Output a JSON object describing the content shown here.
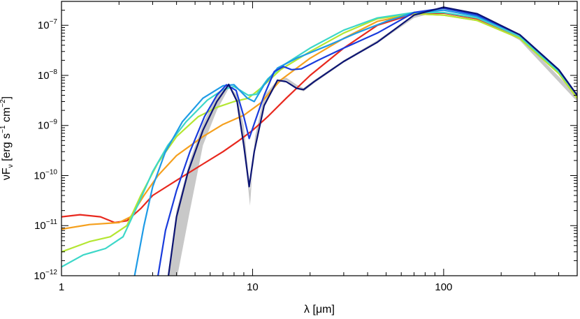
{
  "chart_data": {
    "type": "line",
    "title": "",
    "xlabel_parts": {
      "sym": "λ",
      "unit": "[μm]"
    },
    "ylabel_parts": {
      "nu": "ν",
      "F": "F",
      "sub": "ν",
      "unit": "[erg s",
      "exp1": "−1",
      "cm": " cm",
      "exp2": "−2",
      "close": "]"
    },
    "x_scale": "log",
    "y_scale": "log",
    "xlim": [
      1,
      500
    ],
    "ylim": [
      1e-12,
      3e-07
    ],
    "x_ticks": [
      1,
      10,
      100
    ],
    "x_tick_labels": [
      "1",
      "10",
      "100"
    ],
    "y_ticks": [
      1e-12,
      1e-11,
      1e-10,
      1e-09,
      1e-08,
      1e-07
    ],
    "y_tick_labels": [
      {
        "base": "10",
        "exp": "−12"
      },
      {
        "base": "10",
        "exp": "−11"
      },
      {
        "base": "10",
        "exp": "−10"
      },
      {
        "base": "10",
        "exp": "−9"
      },
      {
        "base": "10",
        "exp": "−8"
      },
      {
        "base": "10",
        "exp": "−7"
      }
    ],
    "grid": false,
    "legend": "none",
    "band": {
      "color": "#c8c8c8",
      "points": [
        [
          3.3,
          5e-13
        ],
        [
          3.6,
          1e-12
        ],
        [
          4.0,
          2e-11
        ],
        [
          4.7,
          2e-10
        ],
        [
          5.5,
          1.1e-09
        ],
        [
          6.5,
          4e-09
        ],
        [
          7.6,
          6.5e-09
        ],
        [
          8.3,
          3e-09
        ],
        [
          9.0,
          4e-10
        ],
        [
          9.7,
          2.5e-11
        ],
        [
          10.3,
          6e-10
        ],
        [
          11.5,
          4e-09
        ],
        [
          13.5,
          8e-09
        ],
        [
          15,
          9e-09
        ],
        [
          17,
          6.5e-09
        ],
        [
          18.5,
          5.6e-09
        ],
        [
          21,
          8e-09
        ],
        [
          30,
          2e-08
        ],
        [
          45,
          5e-08
        ],
        [
          70,
          1.6e-07
        ],
        [
          100,
          2.3e-07
        ],
        [
          150,
          1.7e-07
        ],
        [
          250,
          6e-08
        ],
        [
          500,
          4e-09
        ],
        [
          500,
          3e-09
        ],
        [
          250,
          5e-08
        ],
        [
          150,
          1.5e-07
        ],
        [
          100,
          2e-07
        ],
        [
          70,
          1.4e-07
        ],
        [
          45,
          4.4e-08
        ],
        [
          30,
          1.8e-08
        ],
        [
          21,
          7e-09
        ],
        [
          18.5,
          4.8e-09
        ],
        [
          17,
          5.4e-09
        ],
        [
          15,
          8e-09
        ],
        [
          13.5,
          7e-09
        ],
        [
          11.5,
          2.5e-09
        ],
        [
          10.3,
          3e-10
        ],
        [
          9.7,
          5e-11
        ],
        [
          9.0,
          1e-09
        ],
        [
          8.3,
          4e-09
        ],
        [
          7.6,
          6e-09
        ],
        [
          6.5,
          2e-09
        ],
        [
          5.5,
          4e-10
        ],
        [
          4.7,
          2e-11
        ],
        [
          4.0,
          8e-13
        ],
        [
          3.7,
          5e-13
        ]
      ]
    },
    "series": [
      {
        "color": "#e8281e",
        "points": [
          [
            1,
            1.5e-11
          ],
          [
            1.25,
            1.65e-11
          ],
          [
            1.6,
            1.5e-11
          ],
          [
            1.9,
            1.15e-11
          ],
          [
            2.2,
            1.25e-11
          ],
          [
            2.6,
            2.2e-11
          ],
          [
            3,
            4e-11
          ],
          [
            4,
            8e-11
          ],
          [
            5.5,
            1.7e-10
          ],
          [
            7,
            3e-10
          ],
          [
            8.5,
            5e-10
          ],
          [
            10,
            8e-10
          ],
          [
            12,
            1.5e-09
          ],
          [
            15,
            3.5e-09
          ],
          [
            20,
            1e-08
          ],
          [
            30,
            3.5e-08
          ],
          [
            45,
            1e-07
          ],
          [
            70,
            1.7e-07
          ],
          [
            100,
            1.75e-07
          ],
          [
            150,
            1.35e-07
          ],
          [
            250,
            6e-08
          ],
          [
            400,
            1.2e-08
          ],
          [
            500,
            4e-09
          ]
        ]
      },
      {
        "color": "#f5a01e",
        "points": [
          [
            1,
            8.5e-12
          ],
          [
            1.4,
            1.05e-11
          ],
          [
            2,
            1.15e-11
          ],
          [
            2.3,
            1.5e-11
          ],
          [
            2.7,
            4e-11
          ],
          [
            3.2,
            1e-10
          ],
          [
            4,
            2.5e-10
          ],
          [
            5.5,
            6e-10
          ],
          [
            7,
            1.05e-09
          ],
          [
            9,
            1.6e-09
          ],
          [
            11,
            2.8e-09
          ],
          [
            14,
            8e-09
          ],
          [
            20,
            2.2e-08
          ],
          [
            30,
            5.5e-08
          ],
          [
            45,
            1.2e-07
          ],
          [
            70,
            1.7e-07
          ],
          [
            100,
            1.6e-07
          ],
          [
            150,
            1.25e-07
          ],
          [
            250,
            5.5e-08
          ],
          [
            400,
            1.1e-08
          ],
          [
            500,
            3.5e-09
          ]
        ]
      },
      {
        "color": "#b4e632",
        "points": [
          [
            1,
            3e-12
          ],
          [
            1.4,
            4.8e-12
          ],
          [
            1.8,
            6e-12
          ],
          [
            2.2,
            1e-11
          ],
          [
            2.6,
            4e-11
          ],
          [
            3.2,
            1.8e-10
          ],
          [
            4,
            6e-10
          ],
          [
            5.2,
            1.5e-09
          ],
          [
            6.5,
            2.3e-09
          ],
          [
            8,
            3e-09
          ],
          [
            9.5,
            3.5e-09
          ],
          [
            11,
            5.5e-09
          ],
          [
            14,
            1.3e-08
          ],
          [
            20,
            3e-08
          ],
          [
            30,
            7e-08
          ],
          [
            45,
            1.35e-07
          ],
          [
            70,
            1.7e-07
          ],
          [
            100,
            1.6e-07
          ],
          [
            150,
            1.25e-07
          ],
          [
            250,
            5.5e-08
          ],
          [
            400,
            1.1e-08
          ],
          [
            500,
            3.5e-09
          ]
        ]
      },
      {
        "color": "#3cd7c8",
        "points": [
          [
            1,
            1.5e-12
          ],
          [
            1.3,
            2.6e-12
          ],
          [
            1.7,
            3.5e-12
          ],
          [
            2.1,
            6e-12
          ],
          [
            2.5,
            2.5e-11
          ],
          [
            3,
            1.2e-10
          ],
          [
            3.6,
            4e-10
          ],
          [
            4.5,
            1.2e-09
          ],
          [
            5.8,
            3.2e-09
          ],
          [
            7,
            5.2e-09
          ],
          [
            8,
            6e-09
          ],
          [
            9.5,
            4e-09
          ],
          [
            10.5,
            4.2e-09
          ],
          [
            12,
            8.5e-09
          ],
          [
            14.5,
            1.6e-08
          ],
          [
            20,
            3.5e-08
          ],
          [
            30,
            8e-08
          ],
          [
            45,
            1.4e-07
          ],
          [
            70,
            1.8e-07
          ],
          [
            100,
            1.8e-07
          ],
          [
            150,
            1.4e-07
          ],
          [
            250,
            6e-08
          ],
          [
            400,
            1.2e-08
          ],
          [
            500,
            4e-09
          ]
        ]
      },
      {
        "color": "#1e9be6",
        "points": [
          [
            2.4,
            9e-13
          ],
          [
            2.7,
            1e-11
          ],
          [
            3,
            6e-11
          ],
          [
            3.5,
            3e-10
          ],
          [
            4.3,
            1.2e-09
          ],
          [
            5.5,
            3.5e-09
          ],
          [
            7,
            6.2e-09
          ],
          [
            8,
            6.5e-09
          ],
          [
            9.4,
            3.5e-09
          ],
          [
            10.2,
            3e-09
          ],
          [
            11.5,
            6.5e-09
          ],
          [
            13.5,
            1.4e-08
          ],
          [
            17,
            2.2e-08
          ],
          [
            25,
            4e-08
          ],
          [
            35,
            7e-08
          ],
          [
            50,
            1.2e-07
          ],
          [
            70,
            1.8e-07
          ],
          [
            100,
            2e-07
          ],
          [
            150,
            1.5e-07
          ],
          [
            250,
            6.5e-08
          ],
          [
            400,
            1.3e-08
          ],
          [
            500,
            4e-09
          ]
        ]
      },
      {
        "color": "#1a3cdc",
        "points": [
          [
            3.2,
            1e-12
          ],
          [
            3.5,
            8e-12
          ],
          [
            4,
            5e-11
          ],
          [
            4.7,
            3e-10
          ],
          [
            5.6,
            1.5e-09
          ],
          [
            6.5,
            4e-09
          ],
          [
            7.3,
            6.5e-09
          ],
          [
            8.2,
            5e-09
          ],
          [
            9,
            1.5e-09
          ],
          [
            9.6,
            5.5e-10
          ],
          [
            10.3,
            1.2e-09
          ],
          [
            11.5,
            4e-09
          ],
          [
            13,
            1.2e-08
          ],
          [
            14.5,
            1.5e-08
          ],
          [
            16,
            1.3e-08
          ],
          [
            18,
            1.35e-08
          ],
          [
            22,
            2e-08
          ],
          [
            30,
            3.5e-08
          ],
          [
            45,
            7e-08
          ],
          [
            70,
            1.8e-07
          ],
          [
            100,
            2.2e-07
          ],
          [
            150,
            1.6e-07
          ],
          [
            250,
            6.5e-08
          ],
          [
            400,
            1.3e-08
          ],
          [
            500,
            4e-09
          ]
        ]
      },
      {
        "color": "#0c1473",
        "points": [
          [
            3.6,
            8e-13
          ],
          [
            4,
            1.5e-11
          ],
          [
            4.6,
            1.2e-10
          ],
          [
            5.5,
            8e-10
          ],
          [
            6.5,
            3e-09
          ],
          [
            7.5,
            6.6e-09
          ],
          [
            8.3,
            3e-09
          ],
          [
            9,
            4e-10
          ],
          [
            9.6,
            6e-11
          ],
          [
            10.2,
            3e-10
          ],
          [
            11.5,
            2.5e-09
          ],
          [
            13.5,
            8e-09
          ],
          [
            15,
            7.5e-09
          ],
          [
            17,
            5.5e-09
          ],
          [
            18.5,
            5.2e-09
          ],
          [
            21,
            7.5e-09
          ],
          [
            30,
            1.9e-08
          ],
          [
            45,
            4.6e-08
          ],
          [
            70,
            1.6e-07
          ],
          [
            100,
            2.3e-07
          ],
          [
            150,
            1.7e-07
          ],
          [
            250,
            6.5e-08
          ],
          [
            400,
            1.3e-08
          ],
          [
            500,
            4e-09
          ]
        ]
      }
    ]
  }
}
